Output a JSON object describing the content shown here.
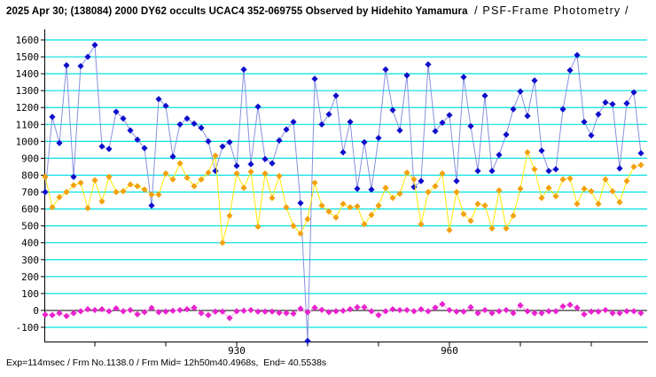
{
  "title": {
    "main": "2025 Apr 30; (138084) 2000 DY62 occults UCAC4 352-069755 Observed by Hidehito Yamamura",
    "suffix": "/ PSF-Frame Photometry /"
  },
  "footer": {
    "text": "Exp=114msec / Frm No.1138.0 / Frm Mid= 12h50m40.4968s,  End= 40.5538s"
  },
  "chart_data": {
    "type": "line",
    "title": "2025 Apr 30; (138084) 2000 DY62 occults UCAC4 352-069755 Observed by Hidehito Yamamura / PSF-Frame Photometry /",
    "xlabel": "",
    "ylabel": "",
    "x_start": 903,
    "x_step": 1,
    "x_end": 987,
    "xticks": [
      910,
      920,
      930,
      940,
      950,
      960,
      970,
      980
    ],
    "xtick_labels": [
      {
        "value": 930,
        "label": "930"
      },
      {
        "value": 960,
        "label": "960"
      }
    ],
    "yticks": [
      1600,
      1500,
      1400,
      1300,
      1200,
      1100,
      1000,
      900,
      800,
      700,
      600,
      500,
      400,
      300,
      200,
      100,
      0,
      -100
    ],
    "ylim": [
      -190,
      1600
    ],
    "grid": true,
    "grid_color": "#00E1E1",
    "zero_line_color": "#000000",
    "axis_color": "#000000",
    "background": "#FFFFFF",
    "legend": "none",
    "series": [
      {
        "name": "blue",
        "marker": "diamond",
        "marker_color": "#0D0DCC",
        "line_color": "#8890DD",
        "values": [
          700,
          1145,
          990,
          1450,
          790,
          1445,
          1500,
          1570,
          970,
          955,
          1175,
          1135,
          1065,
          1010,
          960,
          620,
          1250,
          1210,
          910,
          1100,
          1135,
          1105,
          1080,
          1000,
          825,
          970,
          995,
          855,
          1425,
          865,
          1205,
          895,
          870,
          1005,
          1070,
          1115,
          635,
          -180,
          1370,
          1100,
          1160,
          1270,
          935,
          1115,
          720,
          995,
          715,
          1020,
          1425,
          1185,
          1065,
          1390,
          730,
          765,
          1455,
          1060,
          1110,
          1155,
          765,
          1380,
          1090,
          825,
          1270,
          825,
          920,
          1040,
          1190,
          1295,
          1150,
          1360,
          945,
          825,
          835,
          1190,
          1420,
          1510,
          1115,
          1035,
          1160,
          1230,
          1220,
          840,
          1225,
          1290,
          930
        ]
      },
      {
        "name": "orange",
        "marker": "diamond",
        "marker_color": "#F2A10E",
        "line_color": "#FFE800",
        "values": [
          790,
          610,
          670,
          700,
          740,
          755,
          605,
          770,
          645,
          790,
          700,
          705,
          745,
          735,
          715,
          685,
          685,
          810,
          775,
          870,
          785,
          735,
          775,
          815,
          915,
          400,
          560,
          810,
          725,
          820,
          495,
          810,
          665,
          795,
          610,
          500,
          455,
          540,
          755,
          620,
          585,
          550,
          630,
          610,
          615,
          510,
          565,
          620,
          725,
          665,
          690,
          815,
          775,
          510,
          700,
          735,
          810,
          475,
          700,
          570,
          530,
          630,
          620,
          485,
          710,
          485,
          560,
          720,
          935,
          835,
          665,
          725,
          675,
          775,
          780,
          630,
          720,
          705,
          630,
          775,
          705,
          640,
          765,
          850,
          860
        ]
      },
      {
        "name": "magenta",
        "marker": "diamond",
        "marker_color": "#E822CE",
        "line_color": "#F9A8E4",
        "values": [
          -25,
          -28,
          -16,
          -33,
          -16,
          -5,
          7,
          2,
          7,
          -5,
          12,
          -5,
          2,
          -23,
          -10,
          15,
          -10,
          -7,
          -2,
          2,
          7,
          16,
          -16,
          -28,
          -7,
          -7,
          -45,
          -5,
          -2,
          2,
          -7,
          -7,
          -7,
          -14,
          -16,
          -19,
          10,
          -10,
          16,
          3,
          -10,
          -5,
          -2,
          7,
          19,
          19,
          -5,
          -28,
          -5,
          7,
          2,
          2,
          -5,
          7,
          -5,
          16,
          37,
          2,
          -7,
          -7,
          19,
          -16,
          2,
          -16,
          -5,
          2,
          -16,
          30,
          -5,
          -16,
          -16,
          -5,
          -5,
          24,
          33,
          16,
          -23,
          -7,
          -7,
          2,
          -16,
          -16,
          -5,
          -5,
          -16
        ]
      }
    ]
  }
}
